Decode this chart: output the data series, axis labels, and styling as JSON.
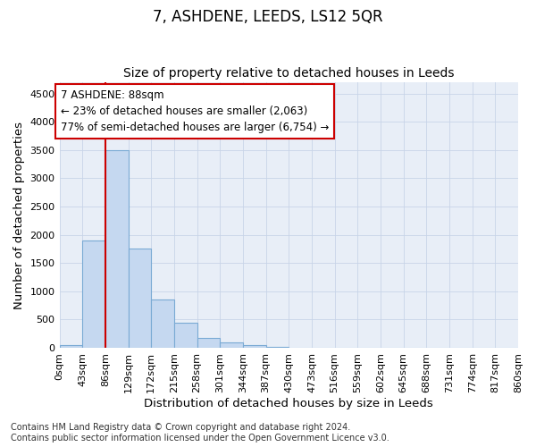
{
  "title": "7, ASHDENE, LEEDS, LS12 5QR",
  "subtitle": "Size of property relative to detached houses in Leeds",
  "xlabel": "Distribution of detached houses by size in Leeds",
  "ylabel": "Number of detached properties",
  "bar_values": [
    50,
    1900,
    3500,
    1750,
    860,
    450,
    170,
    90,
    50,
    20,
    5,
    3,
    2,
    1,
    1,
    0,
    0,
    0,
    0,
    0
  ],
  "bin_edges": [
    0,
    43,
    86,
    129,
    172,
    215,
    258,
    301,
    344,
    387,
    430,
    473,
    516,
    559,
    602,
    645,
    688,
    731,
    774,
    817,
    860
  ],
  "bin_labels": [
    "0sqm",
    "43sqm",
    "86sqm",
    "129sqm",
    "172sqm",
    "215sqm",
    "258sqm",
    "301sqm",
    "344sqm",
    "387sqm",
    "430sqm",
    "473sqm",
    "516sqm",
    "559sqm",
    "602sqm",
    "645sqm",
    "688sqm",
    "731sqm",
    "774sqm",
    "817sqm",
    "860sqm"
  ],
  "bar_color": "#c5d8f0",
  "bar_edge_color": "#7aaad4",
  "property_line_x": 86,
  "property_line_color": "#cc0000",
  "annotation_line1": "7 ASHDENE: 88sqm",
  "annotation_line2": "← 23% of detached houses are smaller (2,063)",
  "annotation_line3": "77% of semi-detached houses are larger (6,754) →",
  "annotation_box_color": "#cc0000",
  "ylim": [
    0,
    4700
  ],
  "yticks": [
    0,
    500,
    1000,
    1500,
    2000,
    2500,
    3000,
    3500,
    4000,
    4500
  ],
  "footnote": "Contains HM Land Registry data © Crown copyright and database right 2024.\nContains public sector information licensed under the Open Government Licence v3.0.",
  "title_fontsize": 12,
  "subtitle_fontsize": 10,
  "axis_label_fontsize": 9.5,
  "tick_fontsize": 8,
  "annotation_fontsize": 8.5,
  "footnote_fontsize": 7,
  "background_color": "#ffffff",
  "plot_bg_color": "#e8eef7",
  "grid_color": "#c8d4e8"
}
